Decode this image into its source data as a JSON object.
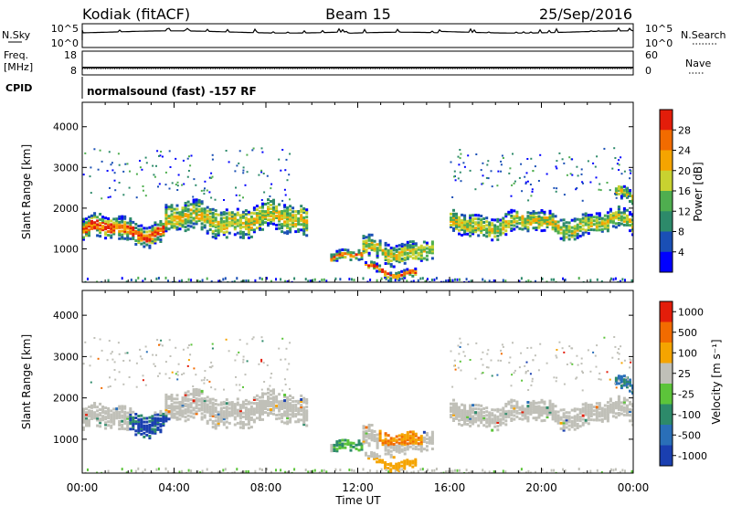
{
  "header": {
    "title": "Kodiak (fitACF)",
    "beam": "Beam 15",
    "date": "25/Sep/2016"
  },
  "top_panels": {
    "nsky_label": "N.Sky",
    "nsky_ticks": [
      "10^5",
      "10^0"
    ],
    "nsearch_label": "N.Search",
    "nsearch_ticks": [
      "10^5",
      "10^0"
    ],
    "freq_label_1": "Freq.",
    "freq_label_2": "[MHz]",
    "freq_ticks": [
      "18",
      "8"
    ],
    "nave_label": "Nave",
    "nave_ticks": [
      "60",
      "0"
    ],
    "cpid_label": "CPID",
    "cpid_text": "normalsound (fast) -157 RF"
  },
  "chart_data": [
    {
      "type": "heatmap",
      "title": "",
      "xlabel": "Time UT",
      "ylabel": "Slant Range [km]",
      "x_ticks": [
        "00:00",
        "04:00",
        "08:00",
        "12:00",
        "16:00",
        "20:00",
        "00:00"
      ],
      "y_ticks": [
        "1000",
        "2000",
        "3000",
        "4000"
      ],
      "ylim": [
        180,
        4600
      ],
      "colorbar": {
        "label": "Power [dB]",
        "ticks": [
          "4",
          "8",
          "12",
          "16",
          "20",
          "24",
          "28"
        ],
        "colors": [
          "#0000ff",
          "#1a4fb5",
          "#2d8a6a",
          "#4fae4f",
          "#c8d230",
          "#f5a400",
          "#f26b00",
          "#e31d0a"
        ]
      },
      "echo_regions": [
        {
          "t0": 0.0,
          "t1": 3.6,
          "r_center": 1500,
          "r_width": 280,
          "intensity": "high"
        },
        {
          "t0": 3.6,
          "t1": 9.8,
          "r_center": 1750,
          "r_width": 350,
          "intensity": "medium"
        },
        {
          "t0": 10.8,
          "t1": 12.2,
          "r_center": 820,
          "r_width": 120,
          "intensity": "high"
        },
        {
          "t0": 12.2,
          "t1": 15.2,
          "r_center": 1000,
          "r_width": 250,
          "intensity": "medium"
        },
        {
          "t0": 12.3,
          "t1": 14.5,
          "r_center": 500,
          "r_width": 100,
          "intensity": "high"
        },
        {
          "t0": 16.0,
          "t1": 24.0,
          "r_center": 1650,
          "r_width": 250,
          "intensity": "medium"
        },
        {
          "t0": 23.2,
          "t1": 24.0,
          "r_center": 2300,
          "r_width": 180,
          "intensity": "medium"
        }
      ]
    },
    {
      "type": "heatmap",
      "title": "",
      "xlabel": "Time UT",
      "ylabel": "Slant Range [km]",
      "x_ticks": [
        "00:00",
        "04:00",
        "08:00",
        "12:00",
        "16:00",
        "20:00",
        "00:00"
      ],
      "y_ticks": [
        "1000",
        "2000",
        "3000",
        "4000"
      ],
      "ylim": [
        180,
        4600
      ],
      "colorbar": {
        "label": "Velocity [m s⁻¹]",
        "ticks": [
          "1000",
          "500",
          "100",
          "25",
          "-25",
          "-100",
          "-500",
          "-1000"
        ],
        "colors": [
          "#1a3fb0",
          "#2a6fb8",
          "#2d8a6a",
          "#5cc43a",
          "#c0c0b8",
          "#f5a400",
          "#f26b00",
          "#e31d0a"
        ]
      }
    }
  ]
}
